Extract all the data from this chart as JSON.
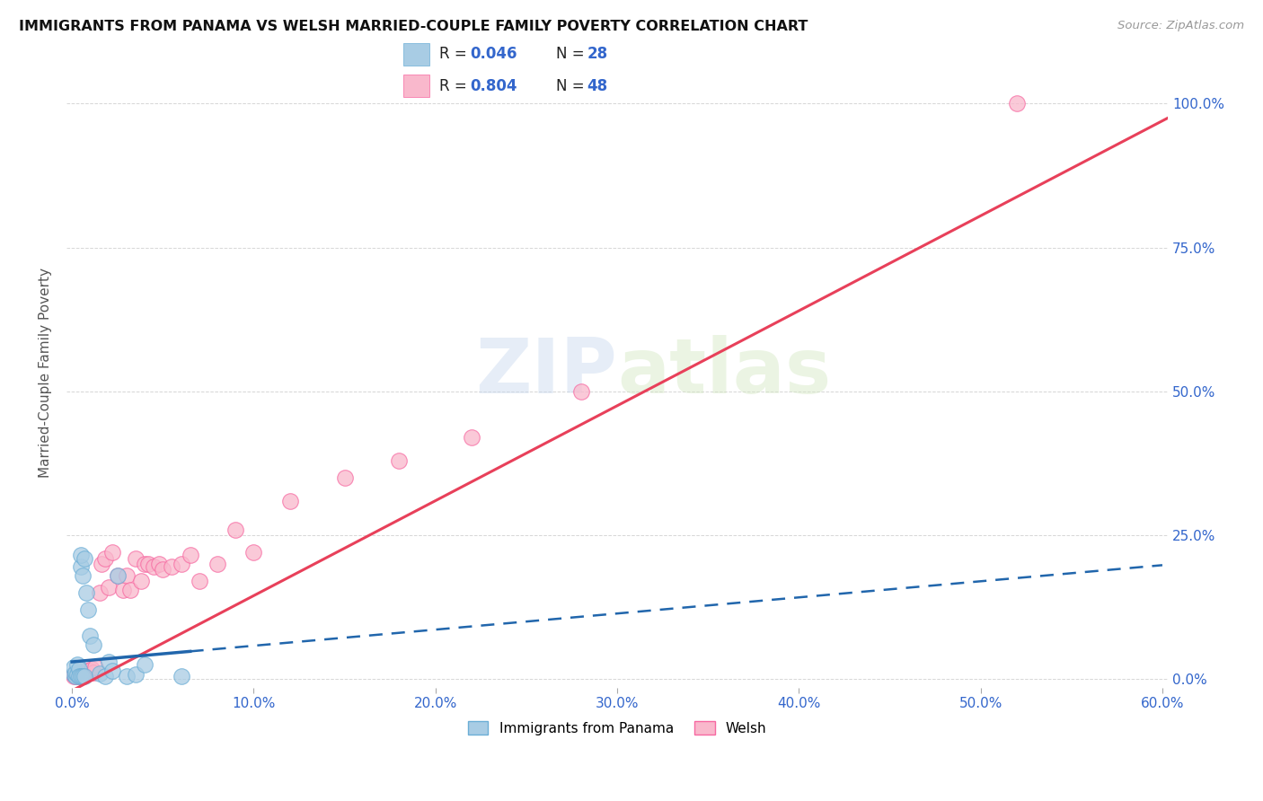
{
  "title": "IMMIGRANTS FROM PANAMA VS WELSH MARRIED-COUPLE FAMILY POVERTY CORRELATION CHART",
  "source": "Source: ZipAtlas.com",
  "ylabel": "Married-Couple Family Poverty",
  "xlim": [
    -0.003,
    0.603
  ],
  "ylim": [
    -0.015,
    1.08
  ],
  "xtick_vals": [
    0.0,
    0.1,
    0.2,
    0.3,
    0.4,
    0.5,
    0.6
  ],
  "xticklabels": [
    "0.0%",
    "10.0%",
    "20.0%",
    "30.0%",
    "40.0%",
    "50.0%",
    "60.0%"
  ],
  "ytick_vals": [
    0.0,
    0.25,
    0.5,
    0.75,
    1.0
  ],
  "yticklabels": [
    "0.0%",
    "25.0%",
    "50.0%",
    "75.0%",
    "100.0%"
  ],
  "blue_color": "#a8cce4",
  "blue_edge_color": "#6baed6",
  "pink_color": "#f9b8cc",
  "pink_edge_color": "#f768a1",
  "blue_line_color": "#2166ac",
  "pink_line_color": "#e8405a",
  "grid_color": "#cccccc",
  "watermark": "ZIPatlas",
  "r_blue": "0.046",
  "n_blue": "28",
  "r_pink": "0.804",
  "n_pink": "48",
  "legend_label_blue": "Immigrants from Panama",
  "legend_label_pink": "Welsh",
  "panama_x": [
    0.001,
    0.001,
    0.002,
    0.002,
    0.003,
    0.003,
    0.004,
    0.004,
    0.005,
    0.005,
    0.005,
    0.006,
    0.006,
    0.007,
    0.007,
    0.008,
    0.009,
    0.01,
    0.012,
    0.015,
    0.018,
    0.02,
    0.022,
    0.025,
    0.03,
    0.035,
    0.04,
    0.06
  ],
  "panama_y": [
    0.008,
    0.02,
    0.005,
    0.012,
    0.008,
    0.025,
    0.018,
    0.005,
    0.195,
    0.215,
    0.005,
    0.005,
    0.18,
    0.21,
    0.005,
    0.15,
    0.12,
    0.075,
    0.06,
    0.01,
    0.005,
    0.03,
    0.015,
    0.18,
    0.005,
    0.008,
    0.025,
    0.005
  ],
  "welsh_x": [
    0.001,
    0.001,
    0.002,
    0.002,
    0.003,
    0.003,
    0.004,
    0.004,
    0.005,
    0.005,
    0.006,
    0.006,
    0.007,
    0.008,
    0.009,
    0.01,
    0.011,
    0.012,
    0.013,
    0.015,
    0.016,
    0.018,
    0.02,
    0.022,
    0.025,
    0.028,
    0.03,
    0.032,
    0.035,
    0.038,
    0.04,
    0.042,
    0.045,
    0.048,
    0.05,
    0.055,
    0.06,
    0.065,
    0.07,
    0.08,
    0.09,
    0.1,
    0.12,
    0.15,
    0.18,
    0.22,
    0.28,
    0.52
  ],
  "welsh_y": [
    0.005,
    0.008,
    0.005,
    0.008,
    0.005,
    0.01,
    0.005,
    0.01,
    0.005,
    0.01,
    0.005,
    0.012,
    0.01,
    0.015,
    0.01,
    0.015,
    0.018,
    0.012,
    0.02,
    0.15,
    0.2,
    0.21,
    0.16,
    0.22,
    0.18,
    0.155,
    0.18,
    0.155,
    0.21,
    0.17,
    0.2,
    0.2,
    0.195,
    0.2,
    0.19,
    0.195,
    0.2,
    0.215,
    0.17,
    0.2,
    0.26,
    0.22,
    0.31,
    0.35,
    0.38,
    0.42,
    0.5,
    1.0
  ],
  "pink_line_slope": 1.65,
  "pink_line_intercept": -0.02,
  "blue_line_slope": 0.28,
  "blue_line_intercept": 0.03
}
